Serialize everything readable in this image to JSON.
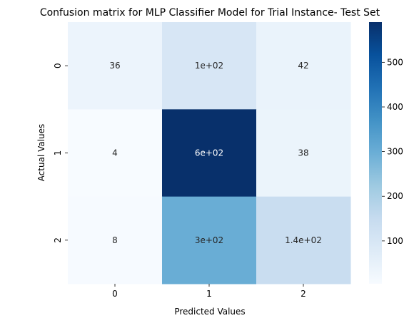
{
  "chart_data": {
    "type": "heatmap",
    "title": "Confusion matrix for MLP Classifier Model for Trial Instance- Test Set",
    "xlabel": "Predicted Values",
    "ylabel": "Actual Values",
    "x_categories": [
      "0",
      "1",
      "2"
    ],
    "y_categories": [
      "0",
      "1",
      "2"
    ],
    "values": [
      [
        36,
        100,
        42
      ],
      [
        4,
        600,
        38
      ],
      [
        8,
        300,
        140
      ]
    ],
    "annotations": [
      [
        "36",
        "1e+02",
        "42"
      ],
      [
        "4",
        "6e+02",
        "38"
      ],
      [
        "8",
        "3e+02",
        "1.4e+02"
      ]
    ],
    "colormap": "Blues",
    "colorbar": {
      "range": [
        4,
        590
      ],
      "ticks": [
        100,
        200,
        300,
        400,
        500
      ],
      "tick_labels": [
        "100",
        "200",
        "300",
        "400",
        "500"
      ]
    },
    "colors": {
      "cmap_stops": [
        "#f7fbff",
        "#deebf7",
        "#c6dbef",
        "#9ecae1",
        "#6baed6",
        "#4292c6",
        "#2171b5",
        "#08519c",
        "#08306b"
      ],
      "text_dark": "#262626",
      "text_light": "#ffffff"
    }
  }
}
